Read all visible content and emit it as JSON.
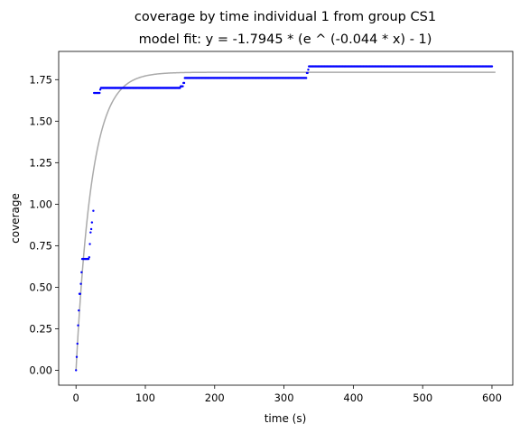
{
  "chart_data": {
    "type": "scatter",
    "title": "coverage by time individual 1 from group CS1",
    "subtitle": "model fit: y = -1.7945 * (e ^ (-0.044 * x) - 1)",
    "xlabel": "time (s)",
    "ylabel": "coverage",
    "xlim": [
      -25,
      630
    ],
    "ylim": [
      -0.09,
      1.92
    ],
    "xticks": [
      0,
      100,
      200,
      300,
      400,
      500,
      600
    ],
    "xtick_labels": [
      "0",
      "100",
      "200",
      "300",
      "400",
      "500",
      "600"
    ],
    "yticks": [
      0,
      0.25,
      0.5,
      0.75,
      1.0,
      1.25,
      1.5,
      1.75
    ],
    "ytick_labels": [
      "0.00",
      "0.25",
      "0.50",
      "0.75",
      "1.00",
      "1.25",
      "1.50",
      "1.75"
    ],
    "grid": false,
    "colors": {
      "points": "#0000ff",
      "fit": "#aaaaaa"
    },
    "fit": {
      "a": 1.7945,
      "k": 0.044,
      "x_range": [
        0,
        605
      ]
    },
    "points": {
      "scattered": [
        [
          0,
          0.0
        ],
        [
          1,
          0.08
        ],
        [
          2,
          0.16
        ],
        [
          3,
          0.27
        ],
        [
          4,
          0.36
        ],
        [
          5,
          0.46
        ],
        [
          6,
          0.46
        ],
        [
          7,
          0.52
        ],
        [
          8,
          0.59
        ],
        [
          9,
          0.67
        ],
        [
          10,
          0.67
        ],
        [
          11,
          0.67
        ],
        [
          12,
          0.67
        ],
        [
          13,
          0.67
        ],
        [
          14,
          0.67
        ],
        [
          15,
          0.67
        ],
        [
          16,
          0.67
        ],
        [
          17,
          0.67
        ],
        [
          18,
          0.67
        ],
        [
          19,
          0.68
        ],
        [
          20,
          0.76
        ],
        [
          21,
          0.83
        ],
        [
          22,
          0.85
        ],
        [
          23,
          0.89
        ],
        [
          25,
          0.96
        ],
        [
          26,
          1.67
        ],
        [
          27,
          1.67
        ],
        [
          28,
          1.67
        ],
        [
          29,
          1.67
        ],
        [
          30,
          1.67
        ],
        [
          31,
          1.67
        ],
        [
          32,
          1.67
        ],
        [
          33,
          1.67
        ],
        [
          34,
          1.67
        ],
        [
          35,
          1.69
        ],
        [
          36,
          1.7
        ],
        [
          37,
          1.7
        ]
      ],
      "steps": [
        {
          "x_start": 38,
          "x_end": 150,
          "y": 1.7
        },
        {
          "x_start": 151,
          "x_end": 154,
          "y": 1.71
        },
        {
          "x_start": 155,
          "x_end": 156,
          "y": 1.73
        },
        {
          "x_start": 157,
          "x_end": 332,
          "y": 1.76
        },
        {
          "x_start": 333,
          "x_end": 334,
          "y": 1.79
        },
        {
          "x_start": 335,
          "x_end": 335,
          "y": 1.81
        },
        {
          "x_start": 336,
          "x_end": 600,
          "y": 1.83
        }
      ]
    }
  }
}
